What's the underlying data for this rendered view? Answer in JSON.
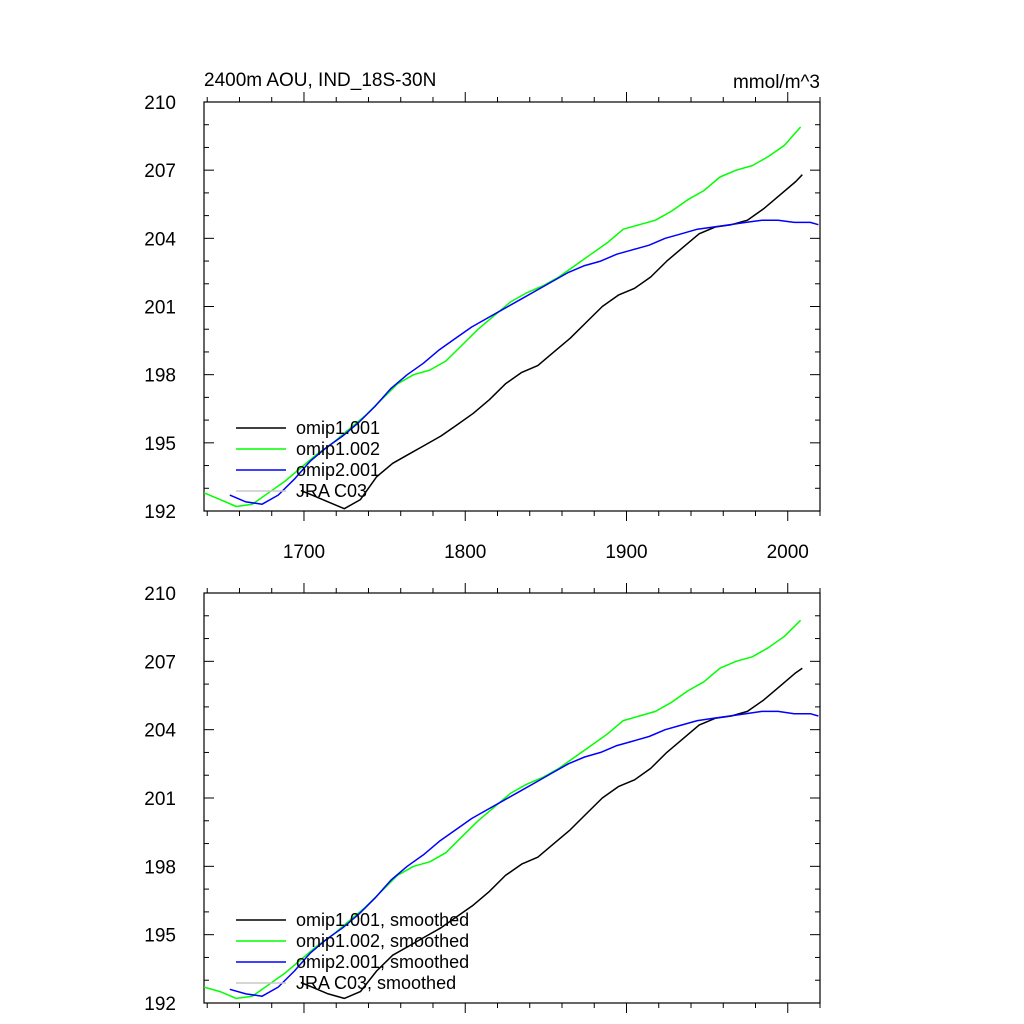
{
  "figure": {
    "title_left": "2400m AOU, IND_18S-30N",
    "title_right": "mmol/m^3"
  },
  "chart_data": [
    {
      "type": "line",
      "title": "2400m AOU, IND_18S-30N",
      "units": "mmol/m^3",
      "xlim": [
        1638,
        2020
      ],
      "ylim": [
        192,
        210
      ],
      "x_ticks": [
        1700,
        1800,
        1900,
        2000
      ],
      "x_tick_labels": [
        "1700",
        "1800",
        "1900",
        "2000"
      ],
      "y_ticks": [
        192,
        195,
        198,
        201,
        204,
        207,
        210
      ],
      "y_tick_labels": [
        "192",
        "195",
        "198",
        "201",
        "204",
        "207",
        "210"
      ],
      "legend": {
        "placement": "bottom-left"
      },
      "series": [
        {
          "name": "omip1.001",
          "color": "#000000",
          "x": [
            1698,
            1705,
            1715,
            1725,
            1735,
            1745,
            1755,
            1765,
            1775,
            1785,
            1795,
            1805,
            1815,
            1825,
            1835,
            1845,
            1855,
            1865,
            1875,
            1885,
            1895,
            1905,
            1915,
            1925,
            1935,
            1945,
            1955,
            1965,
            1975,
            1985,
            1995,
            2005,
            2009
          ],
          "y": [
            192.9,
            192.7,
            192.4,
            192.1,
            192.5,
            193.5,
            194.1,
            194.5,
            194.9,
            195.3,
            195.8,
            196.3,
            196.9,
            197.6,
            198.1,
            198.4,
            199.0,
            199.6,
            200.3,
            201.0,
            201.5,
            201.8,
            202.3,
            203.0,
            203.6,
            204.2,
            204.5,
            204.6,
            204.8,
            205.3,
            205.9,
            206.5,
            206.8
          ]
        },
        {
          "name": "omip1.002",
          "color": "#00ff00",
          "x": [
            1638,
            1648,
            1658,
            1668,
            1678,
            1688,
            1698,
            1708,
            1718,
            1728,
            1738,
            1748,
            1758,
            1768,
            1778,
            1788,
            1798,
            1808,
            1818,
            1828,
            1838,
            1848,
            1858,
            1868,
            1878,
            1888,
            1898,
            1908,
            1918,
            1928,
            1938,
            1948,
            1958,
            1968,
            1978,
            1988,
            1998,
            2008
          ],
          "y": [
            192.8,
            192.5,
            192.2,
            192.3,
            192.8,
            193.3,
            193.9,
            194.5,
            195.0,
            195.6,
            196.2,
            196.9,
            197.6,
            198.0,
            198.2,
            198.6,
            199.3,
            200.0,
            200.6,
            201.2,
            201.6,
            201.9,
            202.3,
            202.8,
            203.3,
            203.8,
            204.4,
            204.6,
            204.8,
            205.2,
            205.7,
            206.1,
            206.7,
            207.0,
            207.2,
            207.6,
            208.1,
            208.9
          ]
        },
        {
          "name": "omip2.001",
          "color": "#0000ff",
          "x": [
            1654,
            1664,
            1674,
            1684,
            1694,
            1704,
            1714,
            1724,
            1734,
            1744,
            1754,
            1764,
            1774,
            1784,
            1794,
            1804,
            1814,
            1824,
            1834,
            1844,
            1854,
            1864,
            1874,
            1884,
            1894,
            1904,
            1914,
            1924,
            1934,
            1944,
            1954,
            1964,
            1974,
            1984,
            1994,
            2004,
            2014,
            2019
          ],
          "y": [
            192.7,
            192.4,
            192.3,
            192.7,
            193.4,
            194.2,
            194.8,
            195.3,
            195.9,
            196.6,
            197.4,
            198.0,
            198.5,
            199.1,
            199.6,
            200.1,
            200.5,
            200.9,
            201.3,
            201.7,
            202.1,
            202.5,
            202.8,
            203.0,
            203.3,
            203.5,
            203.7,
            204.0,
            204.2,
            204.4,
            204.5,
            204.6,
            204.7,
            204.8,
            204.8,
            204.7,
            204.7,
            204.6
          ]
        },
        {
          "name": "JRA C03",
          "color": "#c8c8c8",
          "x": [],
          "y": []
        }
      ]
    },
    {
      "type": "line",
      "title": "",
      "xlim": [
        1638,
        2020
      ],
      "ylim": [
        192,
        210
      ],
      "y_ticks": [
        192,
        195,
        198,
        201,
        204,
        207,
        210
      ],
      "y_tick_labels": [
        "192",
        "195",
        "198",
        "201",
        "204",
        "207",
        "210"
      ],
      "legend": {
        "placement": "bottom-left"
      },
      "series": [
        {
          "name": "omip1.001, smoothed",
          "color": "#000000",
          "x": [
            1698,
            1705,
            1715,
            1725,
            1735,
            1745,
            1755,
            1765,
            1775,
            1785,
            1795,
            1805,
            1815,
            1825,
            1835,
            1845,
            1855,
            1865,
            1875,
            1885,
            1895,
            1905,
            1915,
            1925,
            1935,
            1945,
            1955,
            1965,
            1975,
            1985,
            1995,
            2005,
            2009
          ],
          "y": [
            192.9,
            192.7,
            192.4,
            192.2,
            192.5,
            193.4,
            194.1,
            194.5,
            194.9,
            195.3,
            195.8,
            196.3,
            196.9,
            197.6,
            198.1,
            198.4,
            199.0,
            199.6,
            200.3,
            201.0,
            201.5,
            201.8,
            202.3,
            203.0,
            203.6,
            204.2,
            204.5,
            204.6,
            204.8,
            205.3,
            205.9,
            206.5,
            206.7
          ]
        },
        {
          "name": "omip1.002, smoothed",
          "color": "#00ff00",
          "x": [
            1638,
            1648,
            1658,
            1668,
            1678,
            1688,
            1698,
            1708,
            1718,
            1728,
            1738,
            1748,
            1758,
            1768,
            1778,
            1788,
            1798,
            1808,
            1818,
            1828,
            1838,
            1848,
            1858,
            1868,
            1878,
            1888,
            1898,
            1908,
            1918,
            1928,
            1938,
            1948,
            1958,
            1968,
            1978,
            1988,
            1998,
            2008
          ],
          "y": [
            192.7,
            192.5,
            192.2,
            192.3,
            192.8,
            193.3,
            193.9,
            194.5,
            195.0,
            195.6,
            196.2,
            196.9,
            197.6,
            198.0,
            198.2,
            198.6,
            199.3,
            200.0,
            200.6,
            201.2,
            201.6,
            201.9,
            202.3,
            202.8,
            203.3,
            203.8,
            204.4,
            204.6,
            204.8,
            205.2,
            205.7,
            206.1,
            206.7,
            207.0,
            207.2,
            207.6,
            208.1,
            208.8
          ]
        },
        {
          "name": "omip2.001, smoothed",
          "color": "#0000ff",
          "x": [
            1654,
            1664,
            1674,
            1684,
            1694,
            1704,
            1714,
            1724,
            1734,
            1744,
            1754,
            1764,
            1774,
            1784,
            1794,
            1804,
            1814,
            1824,
            1834,
            1844,
            1854,
            1864,
            1874,
            1884,
            1894,
            1904,
            1914,
            1924,
            1934,
            1944,
            1954,
            1964,
            1974,
            1984,
            1994,
            2004,
            2014,
            2019
          ],
          "y": [
            192.6,
            192.4,
            192.3,
            192.7,
            193.4,
            194.2,
            194.8,
            195.3,
            195.9,
            196.6,
            197.4,
            198.0,
            198.5,
            199.1,
            199.6,
            200.1,
            200.5,
            200.9,
            201.3,
            201.7,
            202.1,
            202.5,
            202.8,
            203.0,
            203.3,
            203.5,
            203.7,
            204.0,
            204.2,
            204.4,
            204.5,
            204.6,
            204.7,
            204.8,
            204.8,
            204.7,
            204.7,
            204.6
          ]
        },
        {
          "name": "JRA C03, smoothed",
          "color": "#c8c8c8",
          "x": [],
          "y": []
        }
      ]
    }
  ]
}
